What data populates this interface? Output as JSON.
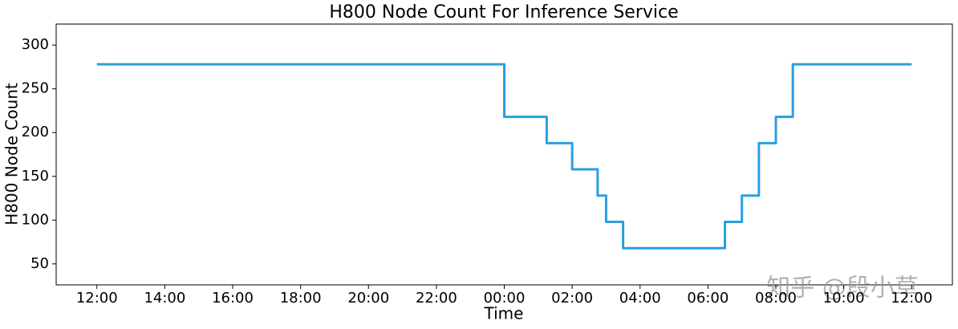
{
  "chart_data": {
    "type": "line",
    "title": "H800 Node Count For Inference Service",
    "x_label": "Time",
    "y_label": "H800 Node Count",
    "watermark": "知乎 @段小草",
    "x": [
      12,
      24,
      24,
      25.25,
      25.25,
      26,
      26,
      26.75,
      26.75,
      27,
      27,
      27.5,
      27.5,
      30.5,
      30.5,
      31,
      31,
      31.5,
      31.5,
      32,
      32,
      32.5,
      32.5,
      36
    ],
    "series": [
      {
        "name": "H800 Node Count",
        "color": "#2a9fdf",
        "values": [
          278,
          278,
          218,
          218,
          188,
          188,
          158,
          158,
          128,
          128,
          98,
          98,
          68,
          68,
          98,
          98,
          128,
          128,
          188,
          188,
          218,
          218,
          278,
          278
        ]
      }
    ],
    "xlim": [
      10.8,
      37.2
    ],
    "xticks": [
      {
        "value": 12,
        "label": "12:00"
      },
      {
        "value": 14,
        "label": "14:00"
      },
      {
        "value": 16,
        "label": "16:00"
      },
      {
        "value": 18,
        "label": "18:00"
      },
      {
        "value": 20,
        "label": "20:00"
      },
      {
        "value": 22,
        "label": "22:00"
      },
      {
        "value": 24,
        "label": "00:00"
      },
      {
        "value": 26,
        "label": "02:00"
      },
      {
        "value": 28,
        "label": "04:00"
      },
      {
        "value": 30,
        "label": "06:00"
      },
      {
        "value": 32,
        "label": "08:00"
      },
      {
        "value": 34,
        "label": "10:00"
      },
      {
        "value": 36,
        "label": "12:00"
      }
    ],
    "ylim": [
      26,
      324
    ],
    "yticks": [
      50,
      100,
      150,
      200,
      250,
      300
    ],
    "grid": false
  }
}
